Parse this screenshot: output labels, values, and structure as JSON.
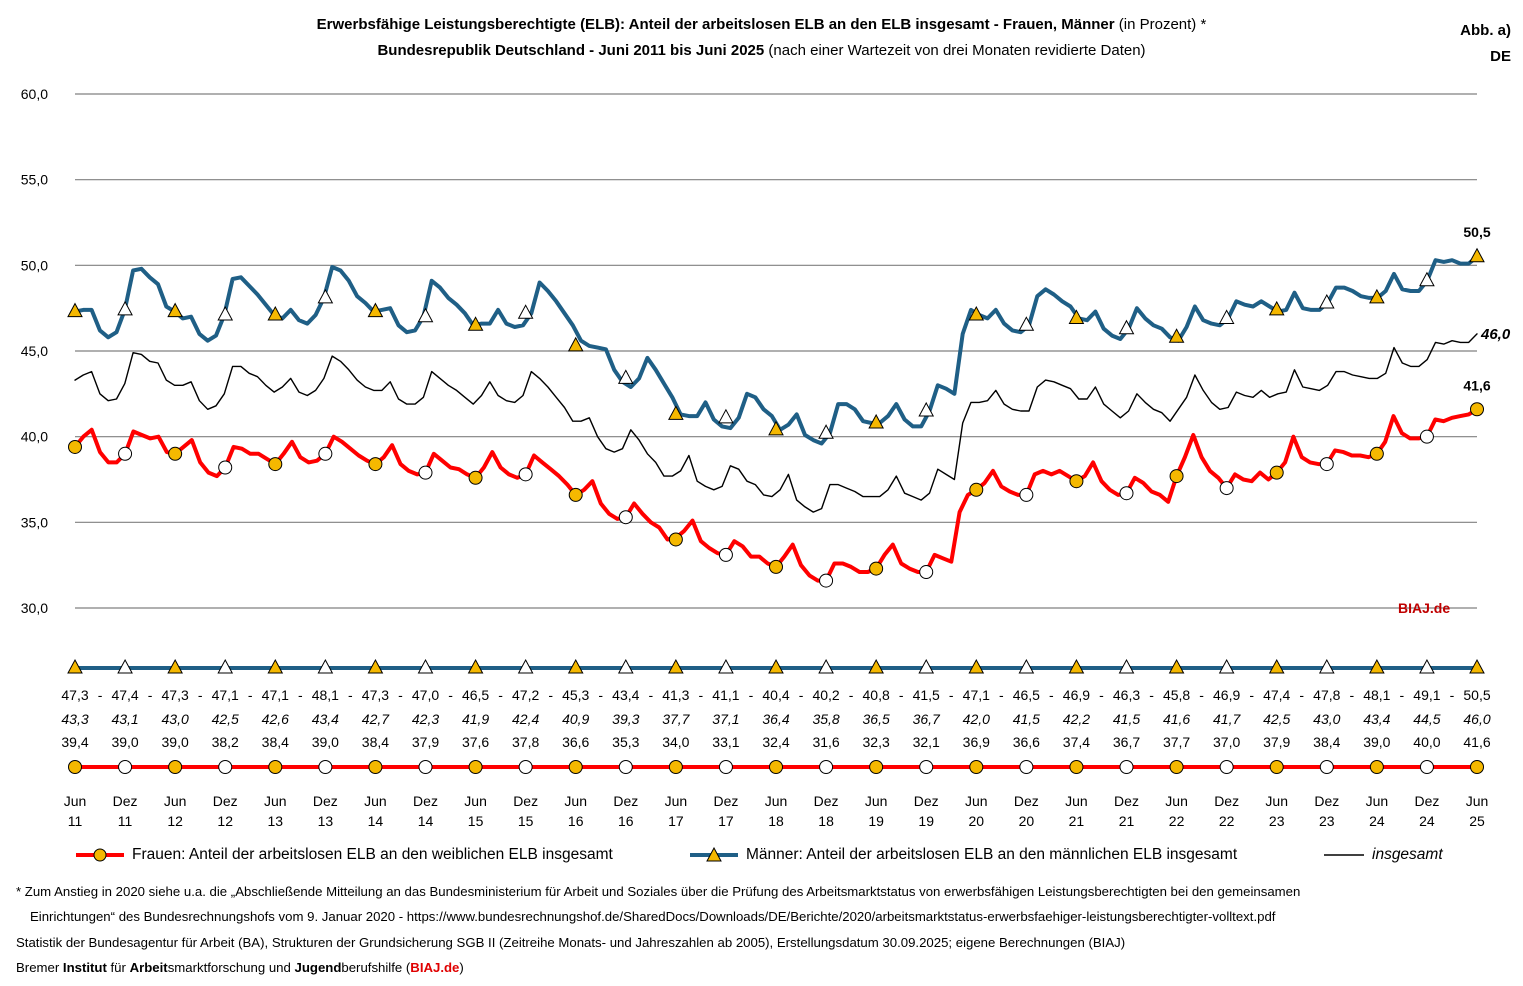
{
  "title": {
    "line1_bold": "Erwerbsfähige Leistungsberechtigte (ELB): Anteil der arbeitslosen ELB an den ELB insgesamt - Frauen, Männer",
    "line1_normal": " (in Prozent) *",
    "line2_bold": "Bundesrepublik Deutschland - Juni 2011 bis Juni 2025",
    "line2_normal": " (nach einer Wartezeit von drei Monaten revidierte Daten)"
  },
  "abb": {
    "label": "Abb. a)",
    "region": "DE"
  },
  "brand": "BIAJ.de",
  "chart_data": {
    "type": "line",
    "ylim": [
      30,
      60
    ],
    "yticks": [
      "60,0",
      "55,0",
      "50,0",
      "45,0",
      "40,0",
      "35,0",
      "30,0"
    ],
    "x_labels": [
      [
        "Jun",
        "11"
      ],
      [
        "Dez",
        "11"
      ],
      [
        "Jun",
        "12"
      ],
      [
        "Dez",
        "12"
      ],
      [
        "Jun",
        "13"
      ],
      [
        "Dez",
        "13"
      ],
      [
        "Jun",
        "14"
      ],
      [
        "Dez",
        "14"
      ],
      [
        "Jun",
        "15"
      ],
      [
        "Dez",
        "15"
      ],
      [
        "Jun",
        "16"
      ],
      [
        "Dez",
        "16"
      ],
      [
        "Jun",
        "17"
      ],
      [
        "Dez",
        "17"
      ],
      [
        "Jun",
        "18"
      ],
      [
        "Dez",
        "18"
      ],
      [
        "Jun",
        "19"
      ],
      [
        "Dez",
        "19"
      ],
      [
        "Jun",
        "20"
      ],
      [
        "Dez",
        "20"
      ],
      [
        "Jun",
        "21"
      ],
      [
        "Dez",
        "21"
      ],
      [
        "Jun",
        "22"
      ],
      [
        "Dez",
        "22"
      ],
      [
        "Jun",
        "23"
      ],
      [
        "Dez",
        "23"
      ],
      [
        "Jun",
        "24"
      ],
      [
        "Dez",
        "24"
      ],
      [
        "Jun",
        "25"
      ]
    ],
    "series": [
      {
        "name": "Männer: Anteil der arbeitslosen ELB an den männlichen ELB insgesamt",
        "color": "#1f5f86",
        "half_year_values": [
          47.3,
          47.4,
          47.3,
          47.1,
          47.1,
          48.1,
          47.3,
          47.0,
          46.5,
          47.2,
          45.3,
          43.4,
          41.3,
          41.1,
          40.4,
          40.2,
          40.8,
          41.5,
          47.1,
          46.5,
          46.9,
          46.3,
          45.8,
          46.9,
          47.4,
          47.8,
          48.1,
          49.1,
          50.5
        ],
        "labels": [
          "47,3",
          "47,4",
          "47,3",
          "47,1",
          "47,1",
          "48,1",
          "47,3",
          "47,0",
          "46,5",
          "47,2",
          "45,3",
          "43,4",
          "41,3",
          "41,1",
          "40,4",
          "40,2",
          "40,8",
          "41,5",
          "47,1",
          "46,5",
          "46,9",
          "46,3",
          "45,8",
          "46,9",
          "47,4",
          "47,8",
          "48,1",
          "49,1",
          "50,5"
        ],
        "monthly": [
          47.3,
          47.4,
          47.4,
          46.2,
          45.8,
          46.1,
          47.4,
          49.7,
          49.8,
          49.3,
          48.9,
          47.6,
          47.3,
          46.9,
          47.0,
          46.0,
          45.6,
          45.9,
          47.1,
          49.2,
          49.3,
          48.8,
          48.3,
          47.7,
          47.1,
          46.9,
          47.4,
          46.8,
          46.6,
          47.1,
          48.1,
          49.9,
          49.7,
          49.1,
          48.2,
          47.8,
          47.3,
          47.4,
          47.5,
          46.5,
          46.1,
          46.2,
          47.0,
          49.1,
          48.7,
          48.1,
          47.7,
          47.2,
          46.5,
          46.6,
          46.6,
          47.4,
          46.6,
          46.4,
          46.5,
          47.2,
          49.0,
          48.5,
          47.9,
          47.2,
          46.5,
          45.6,
          45.3,
          45.2,
          45.1,
          43.9,
          43.2,
          42.9,
          43.4,
          44.6,
          43.9,
          43.1,
          42.3,
          41.3,
          41.2,
          41.2,
          42.0,
          41.0,
          40.6,
          40.5,
          41.1,
          42.5,
          42.3,
          41.6,
          41.2,
          40.4,
          40.7,
          41.3,
          40.1,
          39.8,
          39.6,
          40.2,
          41.9,
          41.9,
          41.6,
          40.9,
          40.8,
          40.8,
          41.2,
          41.9,
          41.0,
          40.6,
          40.6,
          41.5,
          43.0,
          42.8,
          42.5,
          46.0,
          47.4,
          47.1,
          46.9,
          47.4,
          46.6,
          46.2,
          46.1,
          46.5,
          48.2,
          48.6,
          48.3,
          47.9,
          47.6,
          46.9,
          46.8,
          47.3,
          46.3,
          45.9,
          45.7,
          46.3,
          47.5,
          46.9,
          46.5,
          46.3,
          45.8,
          45.6,
          46.4,
          47.6,
          46.8,
          46.6,
          46.5,
          46.9,
          47.9,
          47.7,
          47.6,
          47.9,
          47.6,
          47.3,
          47.4,
          48.4,
          47.5,
          47.4,
          47.4,
          47.8,
          48.7,
          48.7,
          48.5,
          48.2,
          48.1,
          48.1,
          48.5,
          49.5,
          48.6,
          48.5,
          48.5,
          49.1,
          50.3,
          50.2,
          50.3,
          50.1,
          50.1,
          50.5
        ]
      },
      {
        "name": "insgesamt",
        "color": "#000000",
        "half_year_values": [
          43.3,
          43.1,
          43.0,
          42.5,
          42.6,
          43.4,
          42.7,
          42.3,
          41.9,
          42.4,
          40.9,
          39.3,
          37.7,
          37.1,
          36.4,
          35.8,
          36.5,
          36.7,
          42.0,
          41.5,
          42.2,
          41.5,
          41.6,
          41.7,
          42.5,
          43.0,
          43.4,
          44.5,
          46.0
        ],
        "labels": [
          "43,3",
          "43,1",
          "43,0",
          "42,5",
          "42,6",
          "43,4",
          "42,7",
          "42,3",
          "41,9",
          "42,4",
          "40,9",
          "39,3",
          "37,7",
          "37,1",
          "36,4",
          "35,8",
          "36,5",
          "36,7",
          "42,0",
          "41,5",
          "42,2",
          "41,5",
          "41,6",
          "41,7",
          "42,5",
          "43,0",
          "43,4",
          "44,5",
          "46,0"
        ],
        "end_label": "46,0",
        "monthly": [
          43.3,
          43.6,
          43.8,
          42.5,
          42.1,
          42.2,
          43.1,
          44.9,
          44.8,
          44.4,
          44.3,
          43.3,
          43.0,
          43.0,
          43.2,
          42.1,
          41.6,
          41.8,
          42.5,
          44.1,
          44.1,
          43.7,
          43.5,
          43.0,
          42.6,
          42.9,
          43.4,
          42.6,
          42.4,
          42.7,
          43.4,
          44.7,
          44.4,
          43.9,
          43.3,
          42.9,
          42.7,
          42.7,
          43.2,
          42.2,
          41.9,
          41.9,
          42.3,
          43.8,
          43.4,
          43.0,
          42.7,
          42.3,
          41.9,
          42.4,
          43.2,
          42.4,
          42.1,
          42.0,
          42.4,
          43.8,
          43.4,
          42.9,
          42.3,
          41.7,
          40.9,
          40.9,
          41.1,
          40.0,
          39.3,
          39.1,
          39.3,
          40.4,
          39.8,
          39.0,
          38.5,
          37.7,
          37.7,
          38.0,
          38.9,
          37.4,
          37.1,
          36.9,
          37.1,
          38.3,
          38.1,
          37.4,
          37.2,
          36.6,
          36.5,
          36.9,
          37.8,
          36.3,
          35.9,
          35.6,
          35.8,
          37.2,
          37.2,
          37.0,
          36.8,
          36.5,
          36.5,
          36.5,
          36.9,
          37.7,
          36.7,
          36.5,
          36.3,
          36.7,
          38.1,
          37.8,
          37.5,
          40.8,
          42.0,
          42.0,
          42.1,
          42.7,
          41.9,
          41.6,
          41.5,
          41.5,
          42.9,
          43.3,
          43.2,
          43.0,
          42.8,
          42.2,
          42.2,
          42.9,
          41.9,
          41.5,
          41.1,
          41.5,
          42.5,
          42.0,
          41.6,
          41.4,
          40.9,
          41.6,
          42.3,
          43.6,
          42.7,
          42.0,
          41.6,
          41.7,
          42.6,
          42.4,
          42.3,
          42.7,
          42.3,
          42.5,
          42.6,
          43.9,
          42.9,
          42.8,
          42.7,
          43.0,
          43.8,
          43.8,
          43.6,
          43.5,
          43.4,
          43.4,
          43.7,
          45.2,
          44.3,
          44.1,
          44.1,
          44.5,
          45.5,
          45.4,
          45.6,
          45.5,
          45.5,
          46.0
        ]
      },
      {
        "name": "Frauen: Anteil der arbeitslosen ELB an den weiblichen ELB insgesamt",
        "color": "#ff0000",
        "half_year_values": [
          39.4,
          39.0,
          39.0,
          38.2,
          38.4,
          39.0,
          38.4,
          37.9,
          37.6,
          37.8,
          36.6,
          35.3,
          34.0,
          33.1,
          32.4,
          31.6,
          32.3,
          32.1,
          36.9,
          36.6,
          37.4,
          36.7,
          37.7,
          37.0,
          37.9,
          38.4,
          39.0,
          40.0,
          41.6
        ],
        "labels": [
          "39,4",
          "39,0",
          "39,0",
          "38,2",
          "38,4",
          "39,0",
          "38,4",
          "37,9",
          "37,6",
          "37,8",
          "36,6",
          "35,3",
          "34,0",
          "33,1",
          "32,4",
          "31,6",
          "32,3",
          "32,1",
          "36,9",
          "36,6",
          "37,4",
          "36,7",
          "37,7",
          "37,0",
          "37,9",
          "38,4",
          "39,0",
          "40,0",
          "41,6"
        ],
        "monthly": [
          39.4,
          40.0,
          40.4,
          39.1,
          38.5,
          38.5,
          39.0,
          40.3,
          40.1,
          39.9,
          40.0,
          39.1,
          39.0,
          39.4,
          39.8,
          38.5,
          37.9,
          37.7,
          38.2,
          39.4,
          39.3,
          39.0,
          39.0,
          38.7,
          38.4,
          39.0,
          39.7,
          38.8,
          38.5,
          38.6,
          39.0,
          40.0,
          39.7,
          39.3,
          38.9,
          38.6,
          38.4,
          38.8,
          39.5,
          38.4,
          38.0,
          37.8,
          37.9,
          39.0,
          38.6,
          38.2,
          38.1,
          37.8,
          37.6,
          38.2,
          39.1,
          38.2,
          37.8,
          37.6,
          37.8,
          38.9,
          38.5,
          38.1,
          37.7,
          37.2,
          36.6,
          36.9,
          37.4,
          36.1,
          35.5,
          35.2,
          35.3,
          36.1,
          35.5,
          35.0,
          34.7,
          34.0,
          34.1,
          34.5,
          35.1,
          33.9,
          33.5,
          33.2,
          33.1,
          33.9,
          33.6,
          33.0,
          33.0,
          32.6,
          32.4,
          33.0,
          33.7,
          32.5,
          31.9,
          31.6,
          31.6,
          32.6,
          32.6,
          32.4,
          32.1,
          32.1,
          32.3,
          33.1,
          33.7,
          32.6,
          32.3,
          32.1,
          32.1,
          33.1,
          32.9,
          32.7,
          35.6,
          36.6,
          36.9,
          37.3,
          38.0,
          37.1,
          36.8,
          36.6,
          36.6,
          37.8,
          38.0,
          37.8,
          38.0,
          37.7,
          37.4,
          37.7,
          38.5,
          37.4,
          36.9,
          36.6,
          36.7,
          37.6,
          37.3,
          36.8,
          36.6,
          36.2,
          37.7,
          38.8,
          40.1,
          38.8,
          38.0,
          37.6,
          37.0,
          37.8,
          37.5,
          37.4,
          37.9,
          37.5,
          37.9,
          38.5,
          40.0,
          38.8,
          38.5,
          38.4,
          38.4,
          39.2,
          39.1,
          38.9,
          38.9,
          38.8,
          39.0,
          39.7,
          41.2,
          40.2,
          39.9,
          39.9,
          40.0,
          41.0,
          40.9,
          41.1,
          41.2,
          41.3,
          41.6
        ]
      }
    ],
    "end_labels": {
      "maenner": "50,5",
      "insgesamt": "46,0",
      "frauen": "41,6"
    }
  },
  "legend": {
    "frauen": "Frauen: Anteil der arbeitslosen ELB an den weiblichen ELB insgesamt",
    "maenner": "Männer: Anteil der arbeitslosen ELB an den männlichen ELB insgesamt",
    "insgesamt": "insgesamt"
  },
  "footnotes": {
    "line1": "* Zum Anstieg in 2020 siehe u.a. die „Abschließende Mitteilung an das Bundesministerium für Arbeit und Soziales über die Prüfung des Arbeitsmarktstatus von erwerbsfähigen Leistungsberechtigten bei den gemeinsamen",
    "line2": "Einrichtungen“ des Bundesrechnungshofs vom  9. Januar 2020 - https://www.bundesrechnungshof.de/SharedDocs/Downloads/DE/Berichte/2020/arbeitsmarktstatus-erwerbsfaehiger-leistungsberechtigter-volltext.pdf",
    "line3": "Statistik der Bundesagentur für Arbeit (BA), Strukturen der Grundsicherung SGB II (Zeitreihe Monats- und Jahreszahlen ab 2005), Erstellungsdatum 30.09.2025; eigene Berechnungen (BIAJ)",
    "line4_a": "Bremer ",
    "line4_b": "Institut",
    "line4_c": " für ",
    "line4_d": "Arbeit",
    "line4_e": "smarktforschung und ",
    "line4_f": "Jugend",
    "line4_g": "berufshilfe (",
    "line4_h": "BIAJ.de",
    "line4_i": ")"
  },
  "colors": {
    "frauen": "#ff0000",
    "maenner": "#1f5f86",
    "marker_fill": "#f5b800",
    "grid": "#808080"
  }
}
